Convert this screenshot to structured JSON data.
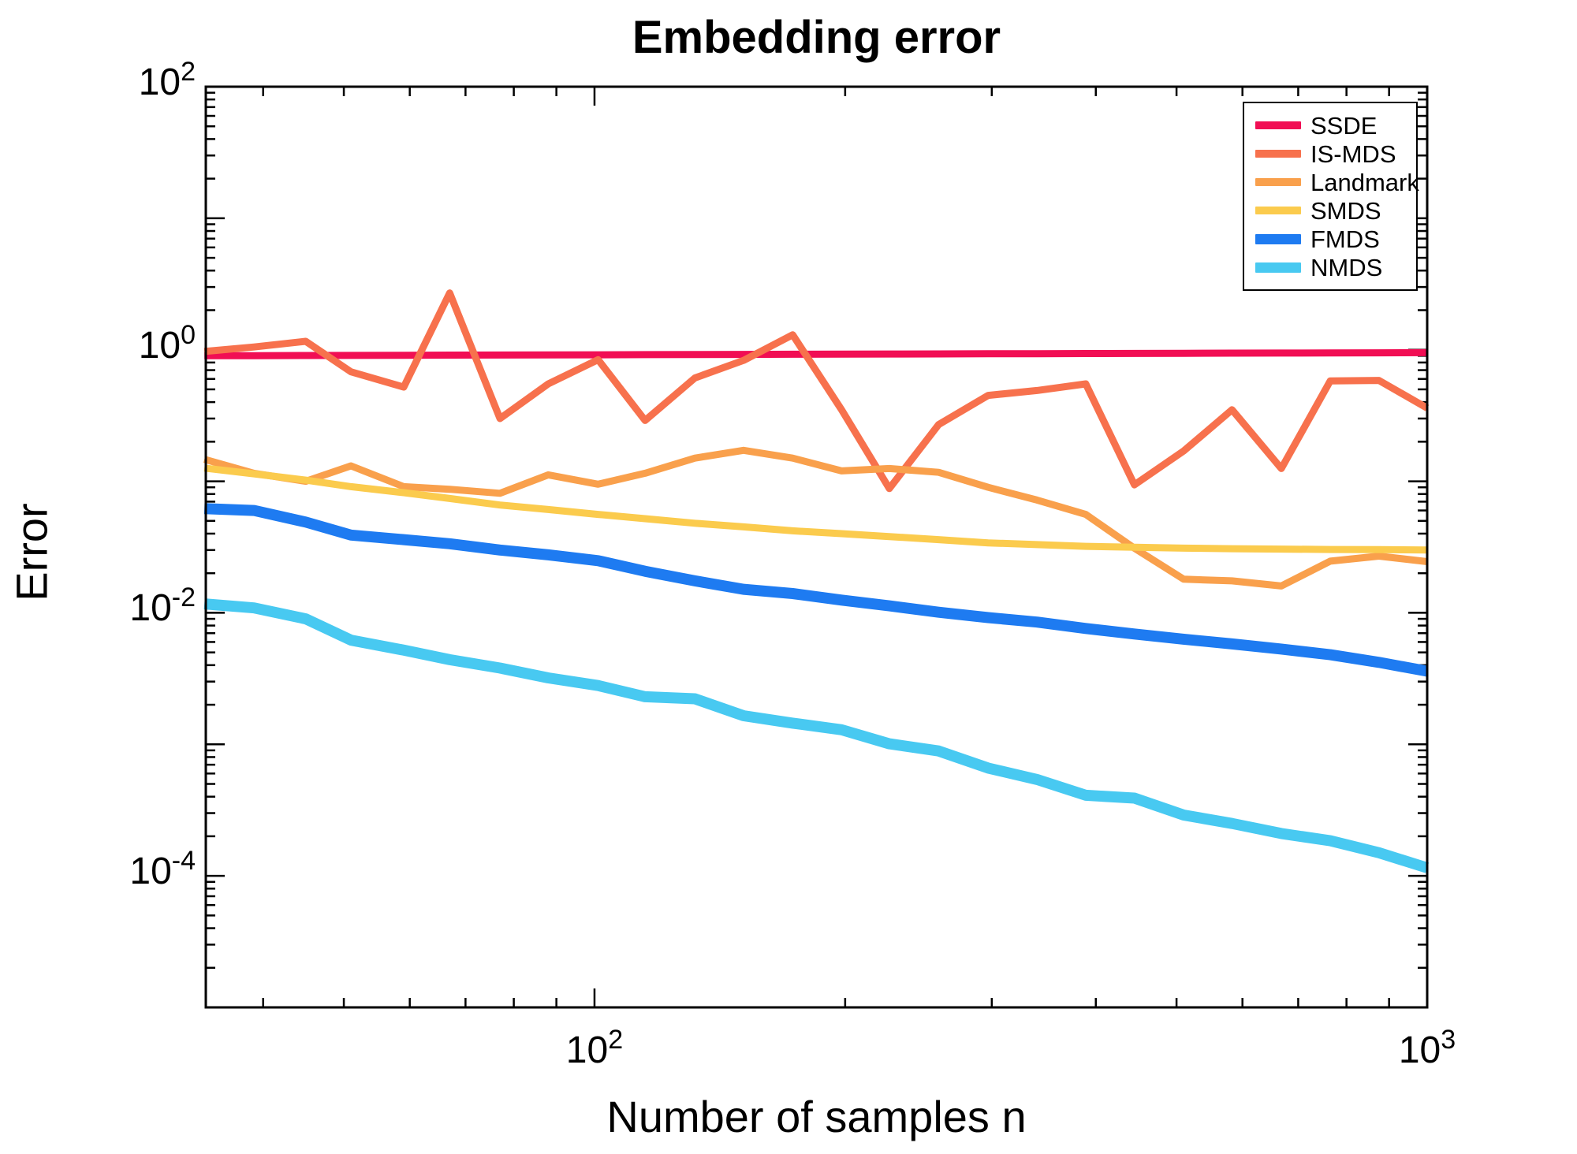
{
  "title": "Embedding error",
  "axes": {
    "xlabel": "Number of samples n",
    "ylabel": "Error",
    "x_scale": "log",
    "y_scale": "log",
    "x_tick_exponents": [
      2,
      3
    ],
    "y_tick_exponents": [
      2,
      0,
      -2,
      -4
    ],
    "x_range_log10": [
      1.5332,
      3.0
    ],
    "y_range_log10": [
      -5,
      2
    ],
    "grid": "off",
    "box": "on"
  },
  "chart_data": {
    "type": "line",
    "x_scale": "log",
    "y_scale": "log",
    "xlabel": "Number of samples n",
    "ylabel": "Error",
    "title": "Embedding error",
    "legend_position": "top-right",
    "x": [
      34,
      39,
      45,
      51,
      59,
      67,
      77,
      88,
      101,
      115,
      132,
      151,
      173,
      198,
      226,
      259,
      297,
      340,
      389,
      445,
      510,
      583,
      668,
      765,
      875,
      1000
    ],
    "series": [
      {
        "name": "SSDE",
        "color": "#F10E54",
        "thick": false,
        "values": [
          0.9,
          0.902,
          0.904,
          0.906,
          0.908,
          0.91,
          0.912,
          0.914,
          0.916,
          0.918,
          0.92,
          0.922,
          0.924,
          0.926,
          0.928,
          0.93,
          0.932,
          0.934,
          0.936,
          0.938,
          0.94,
          0.942,
          0.944,
          0.946,
          0.948,
          0.95
        ]
      },
      {
        "name": "IS-MDS",
        "color": "#F7714D",
        "thick": false,
        "values": [
          0.97,
          1.05,
          1.16,
          0.68,
          0.52,
          2.7,
          0.3,
          0.55,
          0.84,
          0.29,
          0.61,
          0.83,
          1.3,
          0.35,
          0.088,
          0.27,
          0.45,
          0.49,
          0.55,
          0.094,
          0.17,
          0.35,
          0.125,
          0.58,
          0.585,
          0.36
        ]
      },
      {
        "name": "Landmark",
        "color": "#F9A04C",
        "thick": false,
        "values": [
          0.147,
          0.115,
          0.1,
          0.131,
          0.091,
          0.087,
          0.081,
          0.112,
          0.095,
          0.115,
          0.15,
          0.172,
          0.15,
          0.12,
          0.125,
          0.117,
          0.09,
          0.072,
          0.056,
          0.031,
          0.018,
          0.0175,
          0.016,
          0.0247,
          0.027,
          0.0245
        ]
      },
      {
        "name": "SMDS",
        "color": "#FBCB4D",
        "thick": false,
        "values": [
          0.126,
          0.114,
          0.102,
          0.091,
          0.082,
          0.074,
          0.066,
          0.061,
          0.056,
          0.052,
          0.048,
          0.045,
          0.042,
          0.04,
          0.038,
          0.036,
          0.034,
          0.033,
          0.032,
          0.0315,
          0.031,
          0.0307,
          0.0305,
          0.0303,
          0.0302,
          0.03
        ]
      },
      {
        "name": "FMDS",
        "color": "#1E7BF1",
        "thick": true,
        "values": [
          0.062,
          0.06,
          0.049,
          0.039,
          0.036,
          0.0335,
          0.03,
          0.0276,
          0.0249,
          0.0207,
          0.0175,
          0.0151,
          0.014,
          0.0125,
          0.0113,
          0.0101,
          0.0092,
          0.0085,
          0.0076,
          0.0069,
          0.0063,
          0.0058,
          0.0053,
          0.0048,
          0.0042,
          0.0036
        ]
      },
      {
        "name": "NMDS",
        "color": "#48C9F1",
        "thick": true,
        "values": [
          0.0117,
          0.0109,
          0.009,
          0.0062,
          0.0052,
          0.0044,
          0.0038,
          0.0032,
          0.0028,
          0.0023,
          0.00222,
          0.00165,
          0.00145,
          0.00129,
          0.00101,
          0.00089,
          0.00066,
          0.00054,
          0.00041,
          0.00039,
          0.00029,
          0.00025,
          0.00021,
          0.000185,
          0.00015,
          0.000115
        ]
      }
    ]
  }
}
